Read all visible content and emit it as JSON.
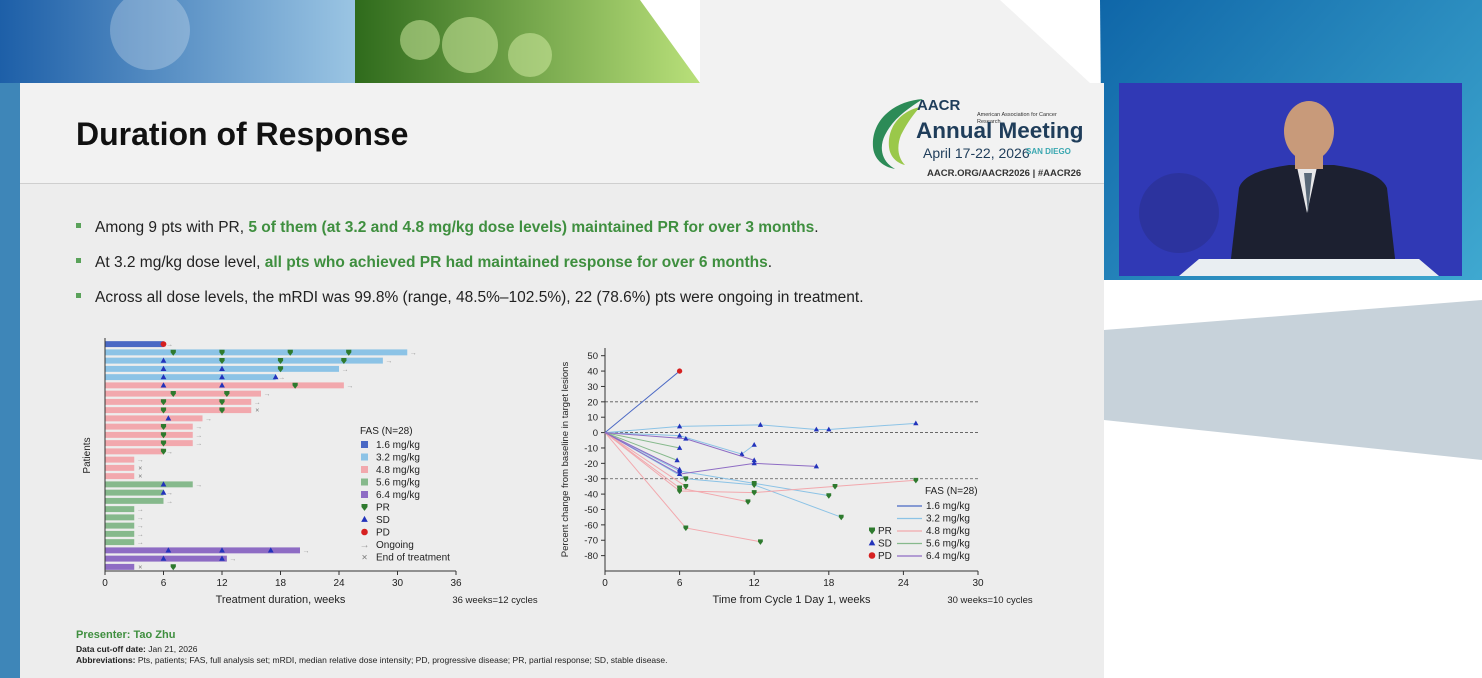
{
  "slide": {
    "title": "Duration of Response",
    "logo": {
      "org_text": "American Association for Cancer Research",
      "brand": "AACR",
      "meeting": "Annual Meeting",
      "dates": "April 17-22, 2026",
      "city": "SAN DIEGO",
      "links": "AACR.ORG/AACR2026 | #AACR26"
    },
    "bullets": [
      {
        "pre": "Among 9 pts with PR, ",
        "highlight": "5 of them (at 3.2 and 4.8 mg/kg dose levels) maintained PR for over 3 months",
        "post": "."
      },
      {
        "pre": "At 3.2 mg/kg dose level, ",
        "highlight": "all pts who achieved PR had maintained response for over 6 months",
        "post": "."
      },
      {
        "pre": "Across all dose levels, the mRDI was 99.8% (range, 48.5%–102.5%), 22 (78.6%) pts were ongoing in treatment.",
        "highlight": "",
        "post": ""
      }
    ],
    "footer": {
      "presenter": "Presenter: Tao Zhu",
      "cutoff_label": "Data cut-off date:",
      "cutoff_value": "Jan 21, 2026",
      "abbr_label": "Abbreviations:",
      "abbr_value": "Pts, patients; FAS, full analysis set; mRDI, median relative dose intensity; PD, progressive disease; PR, partial response; SD, stable disease."
    }
  },
  "colors": {
    "dose_1_6": "#4a68c4",
    "dose_3_2": "#8cc3e6",
    "dose_4_8": "#f2a8ad",
    "dose_5_6": "#86b98c",
    "dose_6_4": "#8e6cc4",
    "pr": "#2e7a2e",
    "sd": "#2233bb",
    "pd": "#d62020",
    "accent_green": "#3f8f3f"
  },
  "chart_data": [
    {
      "type": "bar",
      "orientation": "horizontal",
      "title": "",
      "xlabel": "Treatment duration, weeks",
      "ylabel": "Patients",
      "xlim": [
        0,
        36
      ],
      "xticks": [
        0,
        6,
        12,
        18,
        24,
        30,
        36
      ],
      "note": "36 weeks=12 cycles",
      "legend_title": "FAS (N=28)",
      "legend": [
        "1.6 mg/kg",
        "3.2 mg/kg",
        "4.8 mg/kg",
        "5.6 mg/kg",
        "6.4 mg/kg",
        "PR",
        "SD",
        "PD",
        "Ongoing",
        "End of treatment"
      ],
      "bars": [
        {
          "dose": "1.6 mg/kg",
          "duration": 6,
          "ongoing": true,
          "markers": [
            {
              "t": 6,
              "r": "PD"
            }
          ]
        },
        {
          "dose": "3.2 mg/kg",
          "duration": 31,
          "ongoing": true,
          "markers": [
            {
              "t": 7,
              "r": "PR"
            },
            {
              "t": 12,
              "r": "PR"
            },
            {
              "t": 19,
              "r": "PR"
            },
            {
              "t": 25,
              "r": "PR"
            }
          ]
        },
        {
          "dose": "3.2 mg/kg",
          "duration": 28.5,
          "ongoing": true,
          "markers": [
            {
              "t": 6,
              "r": "SD"
            },
            {
              "t": 12,
              "r": "PR"
            },
            {
              "t": 18,
              "r": "PR"
            },
            {
              "t": 24.5,
              "r": "PR"
            }
          ]
        },
        {
          "dose": "3.2 mg/kg",
          "duration": 24,
          "ongoing": true,
          "markers": [
            {
              "t": 6,
              "r": "SD"
            },
            {
              "t": 12,
              "r": "SD"
            },
            {
              "t": 18,
              "r": "PR"
            }
          ]
        },
        {
          "dose": "3.2 mg/kg",
          "duration": 17.5,
          "ongoing": true,
          "markers": [
            {
              "t": 6,
              "r": "SD"
            },
            {
              "t": 12,
              "r": "SD"
            },
            {
              "t": 17.5,
              "r": "SD"
            }
          ]
        },
        {
          "dose": "4.8 mg/kg",
          "duration": 24.5,
          "ongoing": true,
          "markers": [
            {
              "t": 6,
              "r": "SD"
            },
            {
              "t": 12,
              "r": "SD"
            },
            {
              "t": 19.5,
              "r": "PR"
            }
          ]
        },
        {
          "dose": "4.8 mg/kg",
          "duration": 16,
          "ongoing": true,
          "markers": [
            {
              "t": 7,
              "r": "PR"
            },
            {
              "t": 12.5,
              "r": "PR"
            }
          ]
        },
        {
          "dose": "4.8 mg/kg",
          "duration": 15,
          "ongoing": true,
          "markers": [
            {
              "t": 6,
              "r": "PR"
            },
            {
              "t": 12,
              "r": "PR"
            }
          ]
        },
        {
          "dose": "4.8 mg/kg",
          "duration": 15,
          "ongoing": false,
          "markers": [
            {
              "t": 6,
              "r": "PR"
            },
            {
              "t": 12,
              "r": "PR"
            }
          ]
        },
        {
          "dose": "4.8 mg/kg",
          "duration": 10,
          "ongoing": true,
          "markers": [
            {
              "t": 6.5,
              "r": "SD"
            }
          ]
        },
        {
          "dose": "4.8 mg/kg",
          "duration": 9,
          "ongoing": true,
          "markers": [
            {
              "t": 6,
              "r": "PR"
            }
          ]
        },
        {
          "dose": "4.8 mg/kg",
          "duration": 9,
          "ongoing": true,
          "markers": [
            {
              "t": 6,
              "r": "PR"
            }
          ]
        },
        {
          "dose": "4.8 mg/kg",
          "duration": 9,
          "ongoing": true,
          "markers": [
            {
              "t": 6,
              "r": "PR"
            }
          ]
        },
        {
          "dose": "4.8 mg/kg",
          "duration": 6,
          "ongoing": true,
          "markers": [
            {
              "t": 6,
              "r": "PR"
            }
          ]
        },
        {
          "dose": "4.8 mg/kg",
          "duration": 3,
          "ongoing": true,
          "markers": []
        },
        {
          "dose": "4.8 mg/kg",
          "duration": 3,
          "ongoing": false,
          "markers": []
        },
        {
          "dose": "4.8 mg/kg",
          "duration": 3,
          "ongoing": false,
          "markers": []
        },
        {
          "dose": "5.6 mg/kg",
          "duration": 9,
          "ongoing": true,
          "markers": [
            {
              "t": 6,
              "r": "SD"
            }
          ]
        },
        {
          "dose": "5.6 mg/kg",
          "duration": 6,
          "ongoing": true,
          "markers": [
            {
              "t": 6,
              "r": "SD"
            }
          ]
        },
        {
          "dose": "5.6 mg/kg",
          "duration": 6,
          "ongoing": true,
          "markers": []
        },
        {
          "dose": "5.6 mg/kg",
          "duration": 3,
          "ongoing": true,
          "markers": []
        },
        {
          "dose": "5.6 mg/kg",
          "duration": 3,
          "ongoing": true,
          "markers": []
        },
        {
          "dose": "5.6 mg/kg",
          "duration": 3,
          "ongoing": true,
          "markers": []
        },
        {
          "dose": "5.6 mg/kg",
          "duration": 3,
          "ongoing": true,
          "markers": []
        },
        {
          "dose": "5.6 mg/kg",
          "duration": 3,
          "ongoing": true,
          "markers": []
        },
        {
          "dose": "6.4 mg/kg",
          "duration": 20,
          "ongoing": true,
          "markers": [
            {
              "t": 6.5,
              "r": "SD"
            },
            {
              "t": 12,
              "r": "SD"
            },
            {
              "t": 17,
              "r": "SD"
            }
          ]
        },
        {
          "dose": "6.4 mg/kg",
          "duration": 12.5,
          "ongoing": true,
          "markers": [
            {
              "t": 6,
              "r": "SD"
            },
            {
              "t": 12,
              "r": "SD"
            }
          ]
        },
        {
          "dose": "6.4 mg/kg",
          "duration": 3,
          "ongoing": false,
          "markers": [
            {
              "t": 7,
              "r": "PR"
            }
          ]
        }
      ]
    },
    {
      "type": "line",
      "title": "",
      "xlabel": "Time from Cycle 1 Day 1, weeks",
      "ylabel": "Percent change from baseline in target lesions",
      "xlim": [
        0,
        30
      ],
      "ylim": [
        -90,
        55
      ],
      "xticks": [
        0,
        6,
        12,
        18,
        24,
        30
      ],
      "yticks": [
        50,
        40,
        30,
        20,
        10,
        0,
        -10,
        -20,
        -30,
        -40,
        -50,
        -60,
        -70,
        -80
      ],
      "reference_lines": [
        20,
        0,
        -30
      ],
      "note": "30 weeks=10 cycles",
      "legend_title": "FAS (N=28)",
      "legend": [
        "PR",
        "SD",
        "PD",
        "1.6 mg/kg",
        "3.2 mg/kg",
        "4.8 mg/kg",
        "5.6 mg/kg",
        "6.4 mg/kg"
      ],
      "series": [
        {
          "dose": "1.6 mg/kg",
          "points": [
            [
              0,
              0,
              ""
            ],
            [
              6,
              40,
              "PD"
            ]
          ]
        },
        {
          "dose": "3.2 mg/kg",
          "points": [
            [
              0,
              0,
              ""
            ],
            [
              6,
              4,
              "SD"
            ],
            [
              12.5,
              5,
              "SD"
            ],
            [
              17,
              2,
              "SD"
            ],
            [
              18,
              2,
              "SD"
            ],
            [
              25,
              6,
              "SD"
            ]
          ]
        },
        {
          "dose": "3.2 mg/kg",
          "points": [
            [
              0,
              0,
              ""
            ],
            [
              6,
              -2,
              "SD"
            ],
            [
              11,
              -14,
              "SD"
            ],
            [
              12,
              -8,
              "SD"
            ]
          ]
        },
        {
          "dose": "3.2 mg/kg",
          "points": [
            [
              0,
              0,
              ""
            ],
            [
              6,
              -25,
              "SD"
            ],
            [
              12,
              -33,
              "PR"
            ],
            [
              18,
              -41,
              "PR"
            ]
          ]
        },
        {
          "dose": "3.2 mg/kg",
          "points": [
            [
              0,
              0,
              ""
            ],
            [
              6.5,
              -30,
              "PR"
            ],
            [
              12,
              -34,
              "PR"
            ],
            [
              19,
              -55,
              "PR"
            ]
          ]
        },
        {
          "dose": "4.8 mg/kg",
          "points": [
            [
              0,
              0,
              ""
            ],
            [
              6,
              -38,
              "PR"
            ],
            [
              12,
              -39,
              "PR"
            ],
            [
              18.5,
              -35,
              "PR"
            ],
            [
              25,
              -31,
              "PR"
            ]
          ]
        },
        {
          "dose": "4.8 mg/kg",
          "points": [
            [
              0,
              0,
              ""
            ],
            [
              6,
              -36,
              "PR"
            ],
            [
              11.5,
              -45,
              "PR"
            ]
          ]
        },
        {
          "dose": "4.8 mg/kg",
          "points": [
            [
              0,
              0,
              ""
            ],
            [
              6.5,
              -35,
              "PR"
            ]
          ]
        },
        {
          "dose": "4.8 mg/kg",
          "points": [
            [
              0,
              0,
              ""
            ],
            [
              6.5,
              -62,
              "PR"
            ],
            [
              12.5,
              -71,
              "PR"
            ]
          ]
        },
        {
          "dose": "5.6 mg/kg",
          "points": [
            [
              0,
              0,
              ""
            ],
            [
              6,
              -10,
              "SD"
            ]
          ]
        },
        {
          "dose": "5.6 mg/kg",
          "points": [
            [
              0,
              0,
              ""
            ],
            [
              5.8,
              -18,
              "SD"
            ]
          ]
        },
        {
          "dose": "6.4 mg/kg",
          "points": [
            [
              0,
              0,
              ""
            ],
            [
              6,
              -27,
              "SD"
            ],
            [
              12,
              -20,
              "SD"
            ],
            [
              17,
              -22,
              "SD"
            ]
          ]
        },
        {
          "dose": "6.4 mg/kg",
          "points": [
            [
              0,
              0,
              ""
            ],
            [
              6.5,
              -4,
              "SD"
            ],
            [
              12,
              -18,
              "SD"
            ]
          ]
        },
        {
          "dose": "6.4 mg/kg",
          "points": [
            [
              0,
              0,
              ""
            ],
            [
              6,
              -24,
              "SD"
            ]
          ]
        }
      ]
    }
  ]
}
